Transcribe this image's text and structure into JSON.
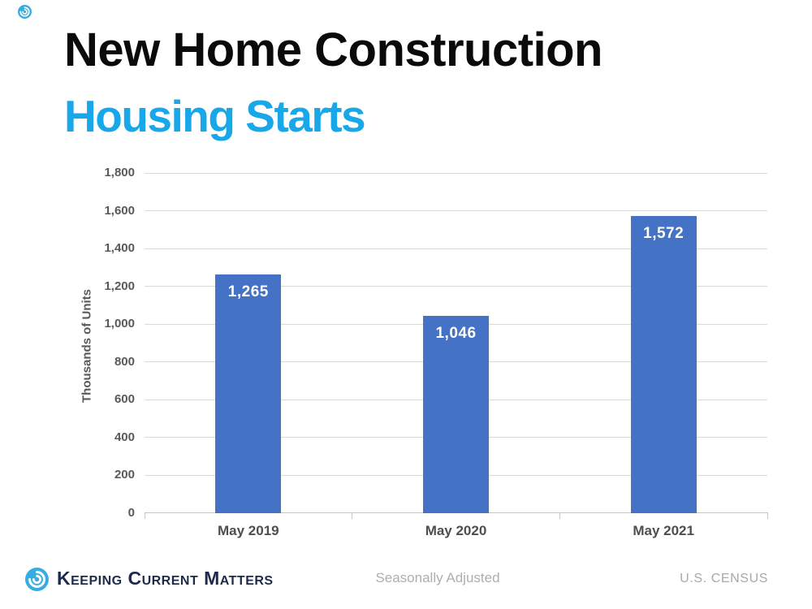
{
  "header": {
    "title": "New Home Construction",
    "subtitle": "Housing Starts",
    "title_color": "#0a0a0a",
    "subtitle_color": "#18a7e8"
  },
  "chart_data": {
    "type": "bar",
    "title": "New Home Construction — Housing Starts",
    "categories": [
      "May 2019",
      "May 2020",
      "May 2021"
    ],
    "values": [
      1265,
      1046,
      1572
    ],
    "value_labels": [
      "1,265",
      "1,046",
      "1,572"
    ],
    "xlabel": "",
    "ylabel": "Thousands of Units",
    "ylim": [
      0,
      1800
    ],
    "yticks": [
      0,
      200,
      400,
      600,
      800,
      1000,
      1200,
      1400,
      1600,
      1800
    ],
    "ytick_labels": [
      "0",
      "200",
      "400",
      "600",
      "800",
      "1,000",
      "1,200",
      "1,400",
      "1,600",
      "1,800"
    ],
    "grid": true,
    "legend": false,
    "bar_color": "#4472c4",
    "value_label_color": "#ffffff",
    "axis_text_color": "#595959",
    "xlabel_text_color": "#4e4e4e",
    "gridline_color": "#d9d9d9",
    "axis_line_color": "#c6c6c6"
  },
  "footer": {
    "brand": "Keeping Current Matters",
    "note": "Seasonally Adjusted",
    "source": "U.S. CENSUS",
    "brand_color": "#1d2b4a",
    "note_color": "#aeaeb2",
    "source_color": "#a9a9a9",
    "logo_color": "#35ade3"
  }
}
